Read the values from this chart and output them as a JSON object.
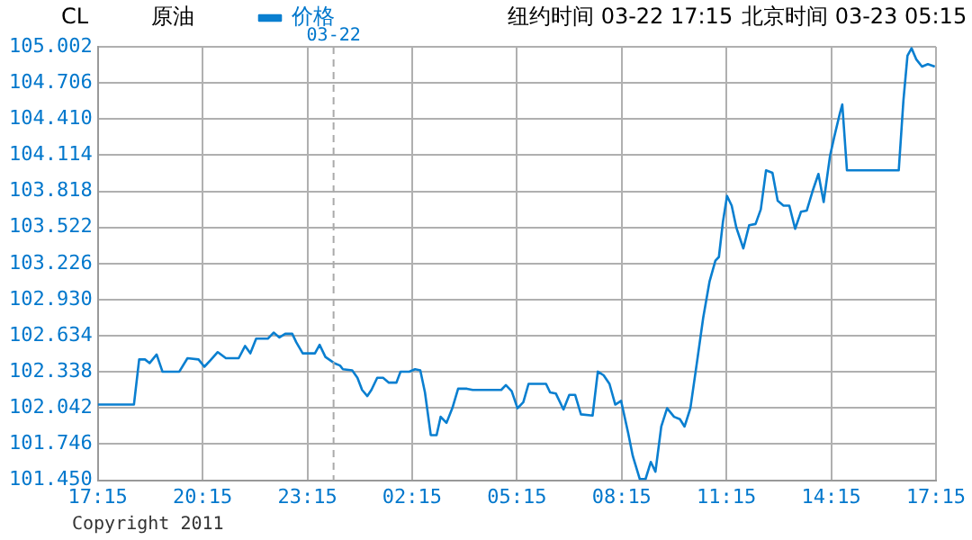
{
  "chart_data": {
    "type": "line",
    "annotations": [
      "CL",
      "原油",
      "纽约时间 03-22 17:15",
      "北京时间 03-23 05:15",
      "Copyright 2011"
    ],
    "xlim": [
      "2011-03-21T17:15",
      "2011-03-22T17:15"
    ],
    "xticks": [
      {
        "value": "2011-03-21T17:15",
        "label": "17:15"
      },
      {
        "value": "2011-03-21T20:15",
        "label": "20:15"
      },
      {
        "value": "2011-03-21T23:15",
        "label": "23:15"
      },
      {
        "value": "2011-03-22T02:15",
        "label": "02:15"
      },
      {
        "value": "2011-03-22T05:15",
        "label": "05:15"
      },
      {
        "value": "2011-03-22T08:15",
        "label": "08:15"
      },
      {
        "value": "2011-03-22T11:15",
        "label": "11:15"
      },
      {
        "value": "2011-03-22T14:15",
        "label": "14:15"
      },
      {
        "value": "2011-03-22T17:15",
        "label": "17:15"
      }
    ],
    "ylim": [
      101.45,
      105.002
    ],
    "yticks": [
      {
        "value": 101.45,
        "label": "101.450"
      },
      {
        "value": 101.746,
        "label": "101.746"
      },
      {
        "value": 102.042,
        "label": "102.042"
      },
      {
        "value": 102.338,
        "label": "102.338"
      },
      {
        "value": 102.634,
        "label": "102.634"
      },
      {
        "value": 102.93,
        "label": "102.930"
      },
      {
        "value": 103.226,
        "label": "103.226"
      },
      {
        "value": 103.522,
        "label": "103.522"
      },
      {
        "value": 103.818,
        "label": "103.818"
      },
      {
        "value": 104.114,
        "label": "104.114"
      },
      {
        "value": 104.41,
        "label": "104.410"
      },
      {
        "value": 104.706,
        "label": "104.706"
      },
      {
        "value": 105.002,
        "label": "105.002"
      }
    ],
    "grid": true,
    "legend": "top",
    "marker": "none",
    "line_style": "solid",
    "ref_lines": [
      {
        "axis": "x",
        "value": "2011-03-22",
        "label": "03-22",
        "color": "#aaaaaa",
        "line_style": "dashed"
      }
    ],
    "series": [
      {
        "name": "价格",
        "color": "#0a7fd0",
        "x": [
          "2011-03-21T17:15",
          "2011-03-21T18:17",
          "2011-03-21T18:26",
          "2011-03-21T18:36",
          "2011-03-21T18:44",
          "2011-03-21T18:56",
          "2011-03-21T19:06",
          "2011-03-21T19:35",
          "2011-03-21T19:49",
          "2011-03-21T20:08",
          "2011-03-21T20:18",
          "2011-03-21T20:28",
          "2011-03-21T20:41",
          "2011-03-21T20:55",
          "2011-03-21T21:17",
          "2011-03-21T21:28",
          "2011-03-21T21:37",
          "2011-03-21T21:47",
          "2011-03-21T22:07",
          "2011-03-21T22:17",
          "2011-03-21T22:27",
          "2011-03-21T22:37",
          "2011-03-21T22:49",
          "2011-03-21T22:56",
          "2011-03-21T23:07",
          "2011-03-21T23:28",
          "2011-03-21T23:36",
          "2011-03-21T23:46",
          "2011-03-22T00:01",
          "2011-03-22T00:11",
          "2011-03-22T00:16",
          "2011-03-22T00:32",
          "2011-03-22T00:41",
          "2011-03-22T00:49",
          "2011-03-22T00:58",
          "2011-03-22T01:05",
          "2011-03-22T01:15",
          "2011-03-22T01:25",
          "2011-03-22T01:35",
          "2011-03-22T01:48",
          "2011-03-22T01:55",
          "2011-03-22T02:10",
          "2011-03-22T02:20",
          "2011-03-22T02:29",
          "2011-03-22T02:37",
          "2011-03-22T02:47",
          "2011-03-22T02:57",
          "2011-03-22T03:04",
          "2011-03-22T03:14",
          "2011-03-22T03:24",
          "2011-03-22T03:34",
          "2011-03-22T03:49",
          "2011-03-22T03:59",
          "2011-03-22T04:38",
          "2011-03-22T04:48",
          "2011-03-22T04:56",
          "2011-03-22T05:06",
          "2011-03-22T05:16",
          "2011-03-22T05:26",
          "2011-03-22T05:35",
          "2011-03-22T06:05",
          "2011-03-22T06:12",
          "2011-03-22T06:22",
          "2011-03-22T06:35",
          "2011-03-22T06:45",
          "2011-03-22T06:55",
          "2011-03-22T07:05",
          "2011-03-22T07:25",
          "2011-03-22T07:34",
          "2011-03-22T07:44",
          "2011-03-22T07:54",
          "2011-03-22T08:04",
          "2011-03-22T08:14",
          "2011-03-22T08:26",
          "2011-03-22T08:34",
          "2011-03-22T08:46",
          "2011-03-22T08:56",
          "2011-03-22T09:05",
          "2011-03-22T09:13",
          "2011-03-22T09:23",
          "2011-03-22T09:33",
          "2011-03-22T09:45",
          "2011-03-22T09:55",
          "2011-03-22T10:03",
          "2011-03-22T10:13",
          "2011-03-22T10:25",
          "2011-03-22T10:35",
          "2011-03-22T10:46",
          "2011-03-22T10:56",
          "2011-03-22T11:02",
          "2011-03-22T11:09",
          "2011-03-22T11:16",
          "2011-03-22T11:24",
          "2011-03-22T11:32",
          "2011-03-22T11:44",
          "2011-03-22T11:54",
          "2011-03-22T12:05",
          "2011-03-22T12:14",
          "2011-03-22T12:23",
          "2011-03-22T12:34",
          "2011-03-22T12:43",
          "2011-03-22T12:53",
          "2011-03-22T13:03",
          "2011-03-22T13:13",
          "2011-03-22T13:23",
          "2011-03-22T13:33",
          "2011-03-22T13:43",
          "2011-03-22T13:53",
          "2011-03-22T14:02",
          "2011-03-22T14:13",
          "2011-03-22T14:20",
          "2011-03-22T14:30",
          "2011-03-22T14:34",
          "2011-03-22T14:42",
          "2011-03-22T16:11",
          "2011-03-22T16:19",
          "2011-03-22T16:26",
          "2011-03-22T16:33",
          "2011-03-22T16:41",
          "2011-03-22T16:51",
          "2011-03-22T17:01",
          "2011-03-22T17:13"
        ],
        "values": [
          102.07,
          102.07,
          102.44,
          102.44,
          102.41,
          102.48,
          102.34,
          102.34,
          102.45,
          102.44,
          102.38,
          102.43,
          102.5,
          102.45,
          102.45,
          102.55,
          102.49,
          102.61,
          102.61,
          102.66,
          102.62,
          102.65,
          102.65,
          102.58,
          102.49,
          102.49,
          102.56,
          102.46,
          102.41,
          102.39,
          102.36,
          102.35,
          102.29,
          102.19,
          102.14,
          102.19,
          102.29,
          102.29,
          102.25,
          102.25,
          102.34,
          102.34,
          102.36,
          102.35,
          102.17,
          101.82,
          101.82,
          101.97,
          101.92,
          102.04,
          102.2,
          102.2,
          102.19,
          102.19,
          102.19,
          102.23,
          102.18,
          102.04,
          102.09,
          102.24,
          102.24,
          102.17,
          102.16,
          102.03,
          102.15,
          102.15,
          101.99,
          101.98,
          102.34,
          102.31,
          102.24,
          102.07,
          102.1,
          101.84,
          101.65,
          101.46,
          101.46,
          101.6,
          101.52,
          101.89,
          102.04,
          101.97,
          101.95,
          101.89,
          102.04,
          102.44,
          102.78,
          103.08,
          103.25,
          103.28,
          103.57,
          103.78,
          103.7,
          103.52,
          103.35,
          103.54,
          103.55,
          103.67,
          103.99,
          103.97,
          103.74,
          103.7,
          103.7,
          103.51,
          103.65,
          103.66,
          103.82,
          103.96,
          103.73,
          104.11,
          104.26,
          104.46,
          104.53,
          103.99,
          103.99,
          104.56,
          104.93,
          104.99,
          104.9,
          104.84,
          104.86,
          104.84
        ]
      }
    ]
  }
}
